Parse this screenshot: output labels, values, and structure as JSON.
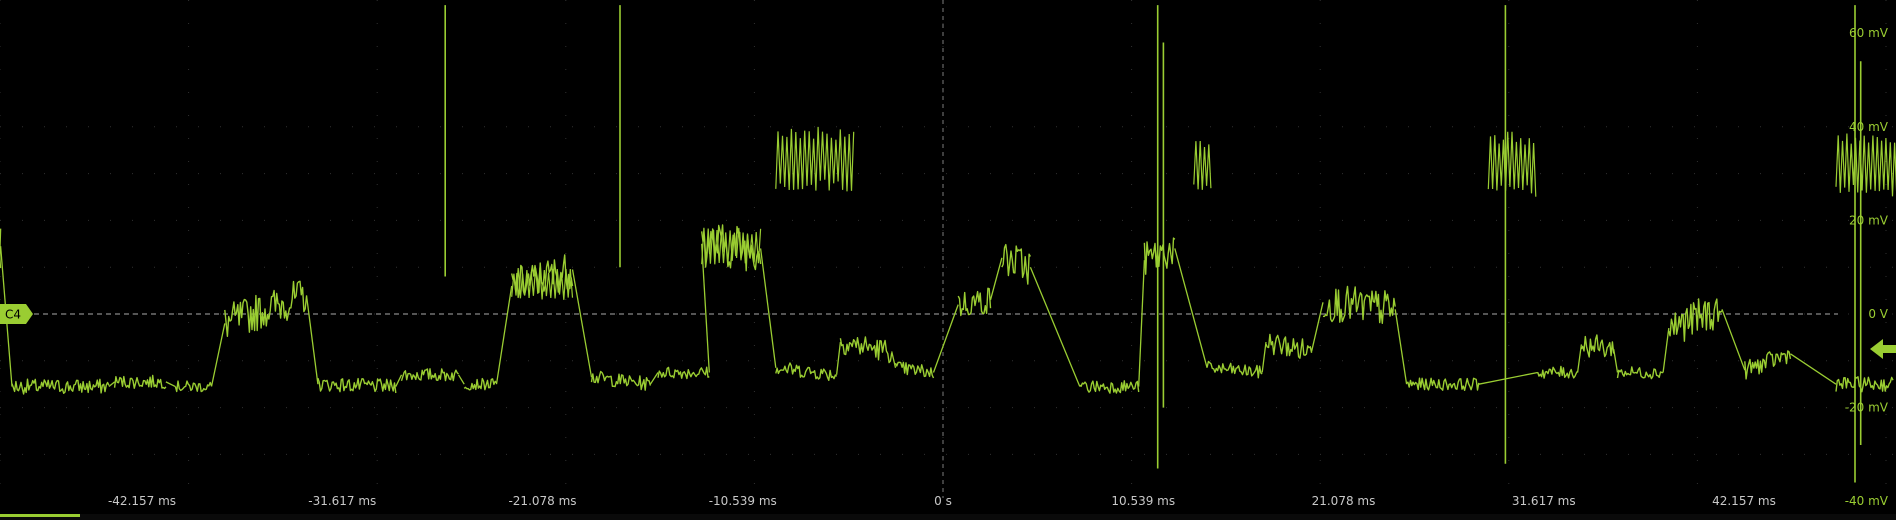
{
  "colors": {
    "background": "#000000",
    "trace": "#9acd32",
    "grid": "#5a5a5a",
    "label": "#9acd32",
    "tick_text": "#c8c8c8"
  },
  "channel": {
    "badge_label": "C4",
    "ground_marker": "left-arrow-icon"
  },
  "chart_data": {
    "type": "line",
    "title": "",
    "xlabel": "",
    "ylabel": "",
    "x_unit": "ms",
    "y_unit": "mV",
    "xlim": [
      -60,
      60
    ],
    "ylim": [
      -40,
      66
    ],
    "grid": true,
    "x_tick_values": [
      -42.157,
      -31.617,
      -21.078,
      -10.539,
      0,
      10.539,
      21.078,
      31.617,
      42.157
    ],
    "x_tick_labels": [
      "-42.157 ms",
      "-31.617 ms",
      "-21.078 ms",
      "-10.539 ms",
      "0 s",
      "10.539 ms",
      "21.078 ms",
      "31.617 ms",
      "42.157 ms"
    ],
    "y_tick_values": [
      60,
      40,
      20,
      0,
      -20,
      -40
    ],
    "y_tick_labels": [
      "60 mV",
      "40 mV",
      "20 mV",
      "0 V",
      "-20 mV",
      "-40 mV"
    ],
    "reference_line": {
      "y": 0
    },
    "series": [
      {
        "segments": [
          {
            "x0": -56.7,
            "x1": -54.5,
            "y0": -11.5,
            "y1": -15.5,
            "amp": 1.2
          },
          {
            "x0": -53.8,
            "x1": -49.6,
            "y0": 13.5,
            "y1": 14.5,
            "amp": 5
          },
          {
            "x0": -49.0,
            "x1": -43.9,
            "y0": -15.5,
            "y1": -15.5,
            "amp": 1.6
          },
          {
            "x0": -43.6,
            "x1": -40.9,
            "y0": -14.5,
            "y1": -14.5,
            "amp": 1.4
          },
          {
            "x0": -40.4,
            "x1": -38.5,
            "y0": -15.5,
            "y1": -15.5,
            "amp": 1.2
          },
          {
            "x0": -37.8,
            "x1": -33.5,
            "y0": -2.0,
            "y1": 4.0,
            "amp": 4
          },
          {
            "x0": -32.9,
            "x1": -28.8,
            "y0": -15.0,
            "y1": -15.5,
            "amp": 1.5
          },
          {
            "x0": -28.5,
            "x1": -25.5,
            "y0": -13.0,
            "y1": -13.0,
            "amp": 1.4
          },
          {
            "x0": -25.2,
            "x1": -23.5,
            "y0": -15.0,
            "y1": -15.0,
            "amp": 1.2
          },
          {
            "x0": -22.7,
            "x1": -19.5,
            "y0": 6.0,
            "y1": 9.5,
            "amp": 4
          },
          {
            "x0": -18.5,
            "x1": -15.4,
            "y0": -13.5,
            "y1": -15.0,
            "amp": 1.5
          },
          {
            "x0": -15.0,
            "x1": -12.3,
            "y0": -12.5,
            "y1": -12.5,
            "amp": 1.3
          },
          {
            "x0": -12.7,
            "x1": -9.6,
            "y0": 15.0,
            "y1": 14.0,
            "amp": 5
          },
          {
            "x0": -8.8,
            "x1": -5.6,
            "y0": -11.5,
            "y1": -13.0,
            "amp": 1.5
          },
          {
            "x0": -5.4,
            "x1": -2.7,
            "y0": -6.0,
            "y1": -8.0,
            "amp": 2.5
          },
          {
            "x0": -2.5,
            "x1": -0.5,
            "y0": -11.5,
            "y1": -12.5,
            "amp": 1.5
          },
          {
            "x0": 0.8,
            "x1": 2.5,
            "y0": 2.0,
            "y1": 3.0,
            "amp": 3
          },
          {
            "x0": 3.1,
            "x1": 4.6,
            "y0": 12.0,
            "y1": 10.0,
            "amp": 4
          },
          {
            "x0": 7.2,
            "x1": 10.3,
            "y0": -15.5,
            "y1": -15.5,
            "amp": 1.4
          },
          {
            "x0": 10.6,
            "x1": 12.2,
            "y0": 11.5,
            "y1": 14.0,
            "amp": 4
          },
          {
            "x0": 13.9,
            "x1": 16.8,
            "y0": -11.5,
            "y1": -12.5,
            "amp": 1.4
          },
          {
            "x0": 17.0,
            "x1": 19.4,
            "y0": -6.0,
            "y1": -8.0,
            "amp": 2.5
          },
          {
            "x0": 20.0,
            "x1": 23.8,
            "y0": 2.5,
            "y1": 1.0,
            "amp": 4
          },
          {
            "x0": 24.4,
            "x1": 28.2,
            "y0": -15.0,
            "y1": -15.0,
            "amp": 1.3
          },
          {
            "x0": 31.3,
            "x1": 33.4,
            "y0": -12.5,
            "y1": -12.5,
            "amp": 1.3
          },
          {
            "x0": 33.6,
            "x1": 35.3,
            "y0": -6.5,
            "y1": -7.5,
            "amp": 2.5
          },
          {
            "x0": 35.5,
            "x1": 37.9,
            "y0": -12.5,
            "y1": -12.5,
            "amp": 1.3
          },
          {
            "x0": 38.2,
            "x1": 41.0,
            "y0": -3.0,
            "y1": 1.0,
            "amp": 4
          },
          {
            "x0": 42.2,
            "x1": 44.6,
            "y0": -12.0,
            "y1": -8.5,
            "amp": 2
          },
          {
            "x0": 47.0,
            "x1": 50.0,
            "y0": -15.0,
            "y1": -15.0,
            "amp": 1.6
          }
        ],
        "pulses": [
          {
            "x0": -53.8,
            "x1": -49.6,
            "y": 13.5,
            "amp": 5
          },
          {
            "x0": -22.7,
            "x1": -19.5,
            "y": 6.5,
            "amp": 3.5
          },
          {
            "x0": -12.7,
            "x1": -9.6,
            "y": 14.5,
            "amp": 4
          },
          {
            "x0": -8.8,
            "x1": -4.7,
            "y": 33.0,
            "amp": 7
          },
          {
            "x0": 13.2,
            "x1": 14.1,
            "y": 32.0,
            "amp": 6
          },
          {
            "x0": 28.7,
            "x1": 31.2,
            "y": 32.0,
            "amp": 7
          },
          {
            "x0": 47.0,
            "x1": 51.0,
            "y": 32.0,
            "amp": 7
          }
        ],
        "spikes": [
          {
            "x": -26.2,
            "top": 66,
            "bottom": 8
          },
          {
            "x": -17.0,
            "top": 66,
            "bottom": 10
          },
          {
            "x": 11.3,
            "top": 66,
            "bottom": -33
          },
          {
            "x": 11.6,
            "top": 58,
            "bottom": -20
          },
          {
            "x": 29.6,
            "top": 66,
            "bottom": -32
          },
          {
            "x": 48.0,
            "top": 66,
            "bottom": -36
          },
          {
            "x": 48.3,
            "top": 54,
            "bottom": -28
          }
        ]
      }
    ]
  }
}
